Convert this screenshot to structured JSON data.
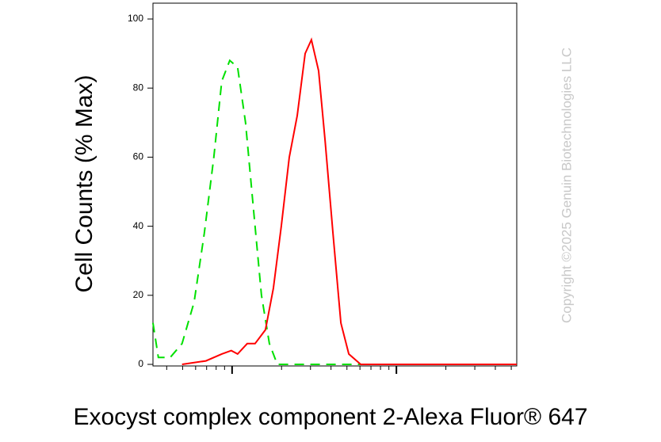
{
  "chart_data": {
    "type": "line",
    "ylabel": "Cell Counts (% Max)",
    "xlabel": "Exocyst complex component 2-Alexa Fluor® 647",
    "watermark": "Copyright ©2025 Genuin Biotechnologies LLC",
    "log_x": true,
    "xlim": [
      330,
      54000
    ],
    "xticks": [
      1000,
      10000
    ],
    "xminorticks": [
      400,
      500,
      600,
      700,
      800,
      900,
      2000,
      3000,
      4000,
      5000,
      6000,
      7000,
      8000,
      9000,
      20000,
      30000,
      40000,
      50000
    ],
    "ylim": [
      0,
      100
    ],
    "yticks": [
      0,
      20,
      40,
      60,
      80,
      100
    ],
    "series": [
      {
        "color": "#00e000",
        "dash": true,
        "x": [
          330,
          356,
          420,
          496,
          587,
          678,
          774,
          865,
          968,
          1081,
          1208,
          1350,
          1509,
          1687,
          1884,
          54000
        ],
        "values": [
          12,
          2,
          2,
          6,
          18,
          38,
          60,
          82,
          88,
          86,
          70,
          45,
          20,
          6,
          0,
          0
        ]
      },
      {
        "color": "#ff0000",
        "dash": false,
        "x": [
          496,
          693,
          865,
          989,
          1081,
          1236,
          1380,
          1596,
          1783,
          1993,
          2228,
          2490,
          2782,
          3040,
          3363,
          3677,
          4109,
          4592,
          5131,
          6064,
          54000
        ],
        "values": [
          0,
          1,
          3,
          4,
          3,
          6,
          6,
          10,
          22,
          40,
          60,
          72,
          90,
          94,
          85,
          65,
          38,
          12,
          3,
          0,
          0
        ]
      }
    ]
  }
}
